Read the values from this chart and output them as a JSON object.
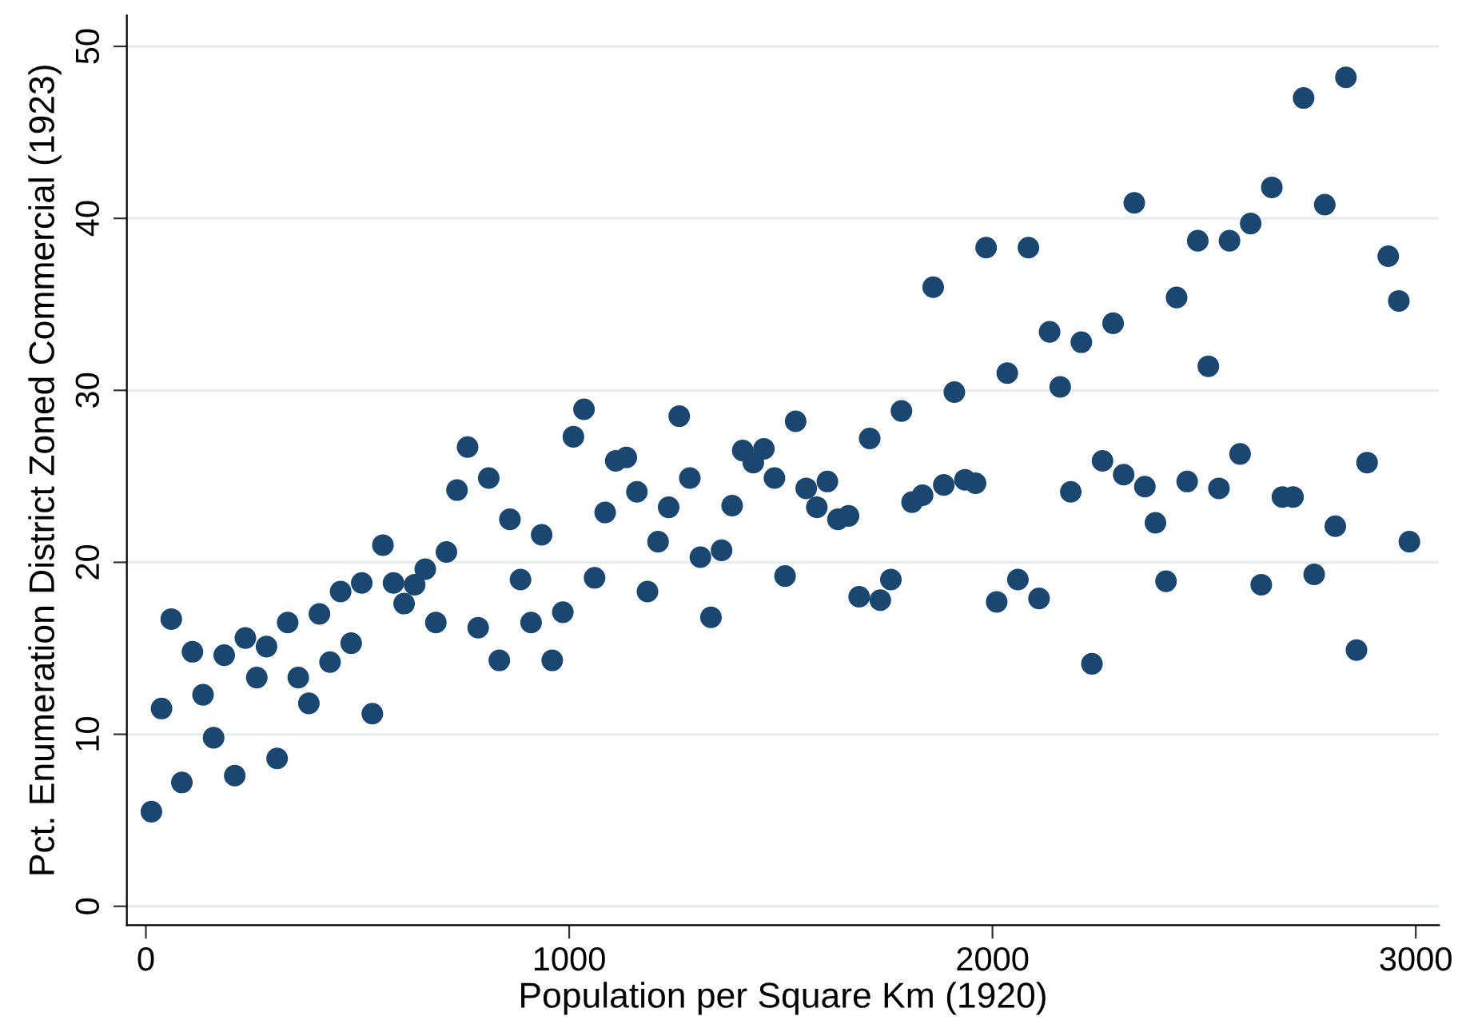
{
  "chart_data": {
    "type": "scatter",
    "xlabel": "Population per Square Km (1920)",
    "ylabel": "Pct. Enumeration District Zoned Commercial (1923)",
    "x": [
      13,
      37,
      60,
      85,
      110,
      135,
      160,
      185,
      210,
      235,
      262,
      285,
      310,
      335,
      360,
      385,
      410,
      435,
      460,
      485,
      510,
      535,
      560,
      585,
      610,
      635,
      660,
      685,
      710,
      735,
      760,
      785,
      810,
      835,
      860,
      885,
      910,
      935,
      960,
      985,
      1010,
      1035,
      1060,
      1085,
      1110,
      1135,
      1160,
      1185,
      1210,
      1235,
      1260,
      1285,
      1310,
      1335,
      1360,
      1385,
      1410,
      1435,
      1460,
      1485,
      1510,
      1535,
      1560,
      1585,
      1610,
      1635,
      1660,
      1685,
      1710,
      1735,
      1760,
      1785,
      1810,
      1835,
      1860,
      1885,
      1910,
      1935,
      1960,
      1985,
      2010,
      2035,
      2060,
      2085,
      2110,
      2135,
      2160,
      2185,
      2210,
      2235,
      2260,
      2285,
      2310,
      2335,
      2360,
      2385,
      2410,
      2435,
      2460,
      2485,
      2510,
      2535,
      2560,
      2585,
      2610,
      2635,
      2660,
      2685,
      2710,
      2735,
      2760,
      2785,
      2810,
      2835,
      2860,
      2885,
      2935,
      2960,
      2985
    ],
    "values": [
      5.5,
      11.5,
      16.7,
      7.2,
      14.8,
      12.3,
      9.8,
      14.6,
      7.6,
      15.6,
      13.3,
      15.1,
      8.6,
      16.5,
      13.3,
      11.8,
      17.0,
      14.2,
      18.3,
      15.3,
      18.8,
      11.2,
      21.0,
      18.8,
      17.6,
      18.7,
      19.6,
      16.5,
      20.6,
      24.2,
      26.7,
      16.2,
      24.9,
      14.3,
      22.5,
      19.0,
      16.5,
      21.6,
      14.3,
      17.1,
      27.3,
      28.9,
      19.1,
      22.9,
      25.9,
      26.1,
      24.1,
      18.3,
      21.2,
      23.2,
      28.5,
      24.9,
      20.3,
      16.8,
      20.7,
      23.3,
      26.5,
      25.8,
      26.6,
      24.9,
      19.2,
      28.2,
      24.3,
      23.2,
      24.7,
      22.5,
      22.7,
      18.0,
      27.2,
      17.8,
      19.0,
      28.8,
      23.5,
      23.9,
      36.0,
      24.5,
      29.9,
      24.8,
      24.6,
      38.3,
      17.7,
      31.0,
      19.0,
      38.3,
      17.9,
      33.4,
      30.2,
      24.1,
      32.8,
      14.1,
      25.9,
      33.9,
      25.1,
      40.9,
      24.4,
      22.3,
      18.9,
      35.4,
      24.7,
      38.7,
      31.4,
      24.3,
      38.7,
      26.3,
      39.7,
      18.7,
      41.8,
      23.8,
      23.8,
      47.0,
      19.3,
      40.8,
      22.1,
      48.2,
      14.9,
      25.8,
      37.8,
      35.2,
      21.2
    ],
    "color": "#1a476f",
    "marker": "circle",
    "grid": "y",
    "xlim": [
      -45,
      3055
    ],
    "ylim": [
      -1.1,
      51.8
    ],
    "xticks": [
      0,
      1000,
      2000,
      3000
    ],
    "yticks": [
      0,
      10,
      20,
      30,
      40,
      50
    ]
  }
}
